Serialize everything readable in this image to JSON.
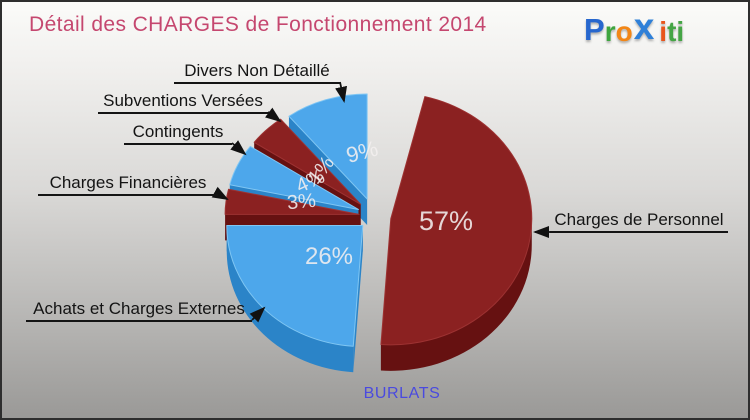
{
  "header": {
    "title": "Détail des CHARGES de Fonctionnement 2014",
    "title_color": "#C5476F"
  },
  "logo": {
    "text": "Proxiti",
    "letters": [
      {
        "ch": "P",
        "color": "#2767CE"
      },
      {
        "ch": "r",
        "color": "#3EA53E"
      },
      {
        "ch": "o",
        "color": "#F28616"
      },
      {
        "ch": "x",
        "color": "#2F80D8"
      },
      {
        "ch": "i",
        "color": "#E8551C"
      },
      {
        "ch": "t",
        "color": "#45A545"
      },
      {
        "ch": "i",
        "color": "#45A545"
      }
    ]
  },
  "footer": {
    "commune": "BURLATS",
    "color": "#4A4ADF"
  },
  "chart_data": {
    "type": "pie",
    "style": "3d-exploded",
    "title": "Détail des CHARGES de Fonctionnement 2014",
    "unit": "%",
    "legend_position": "callouts",
    "palette": {
      "dark_red": "#8B2121",
      "blue": "#4DA7EB"
    },
    "slices": [
      {
        "label": "Charges de Personnel",
        "value": 57,
        "display": "57%",
        "color": "#8B2121"
      },
      {
        "label": "Achats et Charges Externes",
        "value": 26,
        "display": "26%",
        "color": "#4DA7EB"
      },
      {
        "label": "Charges Financières",
        "value": 3,
        "display": "3%",
        "color": "#8B2121"
      },
      {
        "label": "Contingents",
        "value": 4,
        "display": "4%",
        "color": "#4DA7EB"
      },
      {
        "label": "Subventions Versées",
        "value": 1,
        "display": "1%",
        "color": "#8B2121"
      },
      {
        "label": "Divers Non Détaillé",
        "value": 9,
        "display": "9%",
        "color": "#4DA7EB"
      }
    ]
  }
}
